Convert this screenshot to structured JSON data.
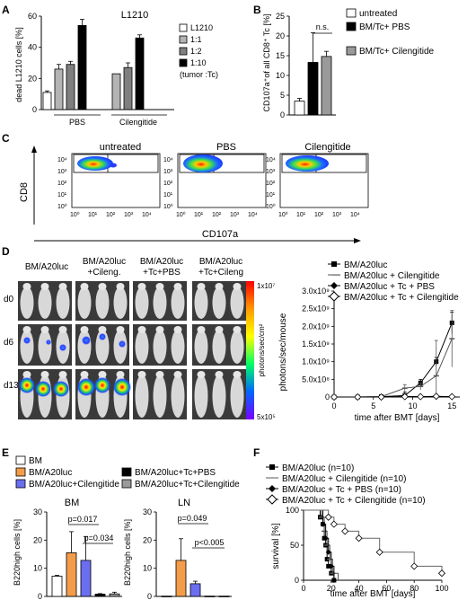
{
  "panels": {
    "A": "A",
    "B": "B",
    "C": "C",
    "D": "D",
    "E": "E",
    "F": "F"
  },
  "panel_a": {
    "title": "L1210",
    "ylabel": "dead L1210 cells [%]",
    "yticks": [
      "0",
      "20",
      "40",
      "60"
    ],
    "groups": [
      "PBS",
      "Cilengitide"
    ],
    "legend": [
      "L1210",
      "1:1",
      "1:2",
      "1:10"
    ],
    "legend_note": "(tumor :Tc)",
    "colors": [
      "#ffffff",
      "#b4b4b4",
      "#7f7f7f",
      "#000000"
    ]
  },
  "panel_b": {
    "ylabel": "CD107a⁺of all CD8⁺ Tc [%]",
    "yticks": [
      "0",
      "5",
      "10",
      "15",
      "20",
      "25"
    ],
    "ns": "n.s.",
    "legend": [
      "untreated",
      "BM/Tc+ PBS",
      "BM/Tc+ Cilengitide"
    ],
    "colors": [
      "#ffffff",
      "#000000",
      "#9a9a9a"
    ]
  },
  "panel_c": {
    "titles": [
      "untreated",
      "PBS",
      "Cilengitide"
    ],
    "ylabel": "CD8",
    "xlabel": "CD107a",
    "xticks": [
      "10⁰",
      "10¹",
      "10²",
      "10³",
      "10⁴"
    ],
    "yticks": [
      "10⁴",
      "10³",
      "10²",
      "10¹",
      "10⁰"
    ]
  },
  "panel_d": {
    "columns": [
      "BM/A20luc",
      "BM/A20luc +Cileng.",
      "BM/A20luc +Tc+PBS",
      "BM/A20luc +Tc+Cileng"
    ],
    "rows": [
      "d0",
      "d6",
      "d13"
    ],
    "scale_top": "1x10⁷",
    "scale_bottom": "5x10⁵",
    "scale_label": "photons/sec/cm²",
    "ylabel": "photons/sec/mouse",
    "yticks": [
      "0",
      "5.0x10⁸",
      "1.0x10⁹",
      "1.5x10⁹",
      "2.0x10⁹",
      "2.5x10⁹",
      "3.0x10⁹"
    ],
    "xticks": [
      "0",
      "5",
      "10",
      "15"
    ],
    "xlabel": "time after BMT [days]",
    "legend": [
      "BM/A20luc",
      "BM/A20luc + Cilengitide",
      "BM/A20luc + Tc + PBS",
      "BM/A20luc + Tc + Cilengitide"
    ]
  },
  "panel_e": {
    "legend": [
      "BM",
      "BM/A20luc",
      "BM/A20luc+Cilengitide",
      "BM/A20luc+Tc+PBS",
      "BM/A20luc+Tc+Cilengitide"
    ],
    "colors": [
      "#ffffff",
      "#f39c4a",
      "#6b6ef0",
      "#000000",
      "#9a9a9a"
    ],
    "bm": {
      "title": "BM",
      "ylabel": "B220high cells [%]",
      "yticks": [
        "0",
        "10",
        "20",
        "30"
      ],
      "p1": "p=0.017",
      "p2": "p=0.034"
    },
    "ln": {
      "title": "LN",
      "ylabel": "B220high cells [%]",
      "yticks": [
        "0",
        "10",
        "20",
        "30"
      ],
      "p1": "p=0.049",
      "p2": "p<0.005"
    }
  },
  "panel_f": {
    "legend": [
      "BM/A20luc (n=10)",
      "BM/A20luc + Cilengitide (n=10)",
      "BM/A20luc + Tc + PBS (n=10)",
      "BM/A20luc + Tc + Cilengitide (n=10)"
    ],
    "ylabel": "survival [%]",
    "yticks": [
      "0",
      "50",
      "100"
    ],
    "xticks": [
      "0",
      "20",
      "40",
      "60",
      "80",
      "100"
    ],
    "xlabel": "time after BMT [days]"
  },
  "chart_data": [
    {
      "id": "A",
      "type": "bar",
      "categories": [
        "PBS",
        "Cilengitide"
      ],
      "series": [
        {
          "name": "L1210",
          "values": [
            11,
            null
          ]
        },
        {
          "name": "1:1",
          "values": [
            26,
            23
          ]
        },
        {
          "name": "1:2",
          "values": [
            29,
            27
          ]
        },
        {
          "name": "1:10",
          "values": [
            54,
            46
          ]
        }
      ],
      "errors": [
        [
          1,
          null
        ],
        [
          3,
          0
        ],
        [
          2,
          3
        ],
        [
          4,
          2
        ]
      ],
      "ylabel": "dead L1210 cells [%]",
      "ylim": [
        0,
        60
      ]
    },
    {
      "id": "B",
      "type": "bar",
      "categories": [
        "untreated",
        "BM/Tc+ PBS",
        "BM/Tc+ Cilengitide"
      ],
      "values": [
        3.5,
        13.3,
        14.8
      ],
      "errors": [
        0.7,
        7.5,
        1.3
      ],
      "ylabel": "CD107a⁺of all CD8⁺ Tc [%]",
      "ylim": [
        0,
        25
      ]
    },
    {
      "id": "D",
      "type": "line",
      "x": [
        0,
        3,
        6,
        9,
        11,
        13,
        15
      ],
      "xlim": [
        0,
        16
      ],
      "ylim": [
        0,
        3000000000.0
      ],
      "xlabel": "time after BMT [days]",
      "ylabel": "photons/sec/mouse",
      "series": [
        {
          "name": "BM/A20luc",
          "values": [
            0,
            0,
            10000000.0,
            40000000.0,
            400000000.0,
            1000000000.0,
            2100000000.0
          ],
          "errors": [
            0,
            0,
            10000000.0,
            100000000.0,
            100000000.0,
            120000000.0,
            300000000.0
          ]
        },
        {
          "name": "BM/A20luc + Cilengitide",
          "values": [
            0,
            0,
            10000000.0,
            250000000.0,
            300000000.0,
            600000000.0,
            1650000000.0
          ],
          "errors": [
            0,
            0,
            10000000.0,
            100000000.0,
            100000000.0,
            1000000000.0,
            800000000.0
          ]
        },
        {
          "name": "BM/A20luc + Tc + PBS",
          "values": [
            0,
            0,
            0,
            10000000.0,
            10000000.0,
            10000000.0,
            10000000.0
          ],
          "errors": [
            0,
            0,
            0,
            0,
            0,
            0,
            0
          ]
        },
        {
          "name": "BM/A20luc + Tc + Cilengitide",
          "values": [
            0,
            0,
            0,
            10000000.0,
            10000000.0,
            20000000.0,
            10000000.0
          ],
          "errors": [
            0,
            0,
            0,
            0,
            0,
            0,
            0
          ]
        }
      ]
    },
    {
      "id": "E-BM",
      "type": "bar",
      "categories": [
        "BM",
        "BM/A20luc",
        "BM/A20luc+Cilengitide",
        "BM/A20luc+Tc+PBS",
        "BM/A20luc+Tc+Cilengitide"
      ],
      "values": [
        7.2,
        15.5,
        12.8,
        0.8,
        0.9
      ],
      "errors": [
        0.3,
        7.5,
        8.5,
        0.2,
        0.6
      ],
      "ylim": [
        0,
        30
      ]
    },
    {
      "id": "E-LN",
      "type": "bar",
      "categories": [
        "BM",
        "BM/A20luc",
        "BM/A20luc+Cilengitide",
        "BM/A20luc+Tc+PBS",
        "BM/A20luc+Tc+Cilengitide"
      ],
      "values": [
        0.1,
        12.8,
        4.5,
        0.1,
        0.1
      ],
      "errors": [
        0,
        7.7,
        0.9,
        0,
        0
      ],
      "ylim": [
        0,
        30
      ]
    },
    {
      "id": "F",
      "type": "line",
      "xlim": [
        0,
        100
      ],
      "ylim": [
        0,
        100
      ],
      "xlabel": "time after BMT [days]",
      "ylabel": "survival [%]",
      "series": [
        {
          "name": "BM/A20luc (n=10)",
          "x": [
            0,
            12,
            14,
            15,
            16,
            17,
            18,
            20,
            22
          ],
          "values": [
            100,
            90,
            80,
            60,
            50,
            30,
            20,
            10,
            0
          ]
        },
        {
          "name": "BM/A20luc + Cilengitide (n=10)",
          "x": [
            0,
            13,
            15,
            17,
            19,
            21,
            25
          ],
          "values": [
            100,
            90,
            70,
            50,
            30,
            10,
            0
          ]
        },
        {
          "name": "BM/A20luc + Tc + PBS (n=10)",
          "x": [
            0,
            14,
            16,
            18,
            20,
            22
          ],
          "values": [
            100,
            80,
            60,
            40,
            20,
            0
          ]
        },
        {
          "name": "BM/A20luc + Tc + Cilengitide (n=10)",
          "x": [
            0,
            18,
            22,
            30,
            40,
            55,
            80,
            100
          ],
          "values": [
            100,
            90,
            80,
            70,
            60,
            40,
            20,
            10
          ]
        }
      ]
    }
  ]
}
